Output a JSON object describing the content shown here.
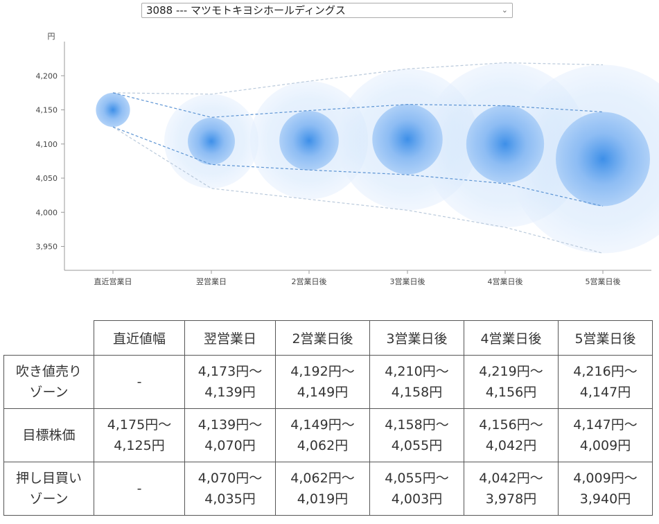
{
  "selector": {
    "value": "3088 --- マツモトキヨシホールディングス"
  },
  "chart_data": {
    "type": "scatter",
    "y_unit_label": "円",
    "yticks": [
      3950,
      4000,
      4050,
      4100,
      4150,
      4200
    ],
    "ytick_labels": [
      "3,950",
      "4,000",
      "4,050",
      "4,100",
      "4,150",
      "4,200"
    ],
    "ylim": [
      3915,
      4250
    ],
    "categories": [
      "直近営業日",
      "翌営業日",
      "2営業日後",
      "3営業日後",
      "4営業日後",
      "5営業日後"
    ],
    "center": [
      4150,
      4104,
      4105,
      4107,
      4100,
      4078
    ],
    "inner_upper": [
      4175,
      4139,
      4149,
      4158,
      4156,
      4147
    ],
    "inner_lower": [
      4125,
      4070,
      4062,
      4055,
      4042,
      4009
    ],
    "outer_upper": [
      4175,
      4173,
      4192,
      4210,
      4219,
      4216
    ],
    "outer_lower": [
      4125,
      4035,
      4019,
      4003,
      3978,
      3940
    ],
    "colors": {
      "bubble_core": "#3d8fe8",
      "bubble_mid": "#a9cdf7",
      "bubble_outer": "#d6e8fc",
      "band_line": "#5b93d3",
      "outer_line": "#b9c9db"
    }
  },
  "table": {
    "headers": [
      "直近値幅",
      "翌営業日",
      "2営業日後",
      "3営業日後",
      "4営業日後",
      "5営業日後"
    ],
    "rows": [
      {
        "label": [
          "吹き値売り",
          "ゾーン"
        ],
        "cells": [
          [
            "-"
          ],
          [
            "4,173円～",
            "4,139円"
          ],
          [
            "4,192円～",
            "4,149円"
          ],
          [
            "4,210円～",
            "4,158円"
          ],
          [
            "4,219円～",
            "4,156円"
          ],
          [
            "4,216円～",
            "4,147円"
          ]
        ]
      },
      {
        "label": [
          "目標株価"
        ],
        "cells": [
          [
            "4,175円～",
            "4,125円"
          ],
          [
            "4,139円～",
            "4,070円"
          ],
          [
            "4,149円～",
            "4,062円"
          ],
          [
            "4,158円～",
            "4,055円"
          ],
          [
            "4,156円～",
            "4,042円"
          ],
          [
            "4,147円～",
            "4,009円"
          ]
        ]
      },
      {
        "label": [
          "押し目買い",
          "ゾーン"
        ],
        "cells": [
          [
            "-"
          ],
          [
            "4,070円～",
            "4,035円"
          ],
          [
            "4,062円～",
            "4,019円"
          ],
          [
            "4,055円～",
            "4,003円"
          ],
          [
            "4,042円～",
            "3,978円"
          ],
          [
            "4,009円～",
            "3,940円"
          ]
        ]
      }
    ]
  }
}
